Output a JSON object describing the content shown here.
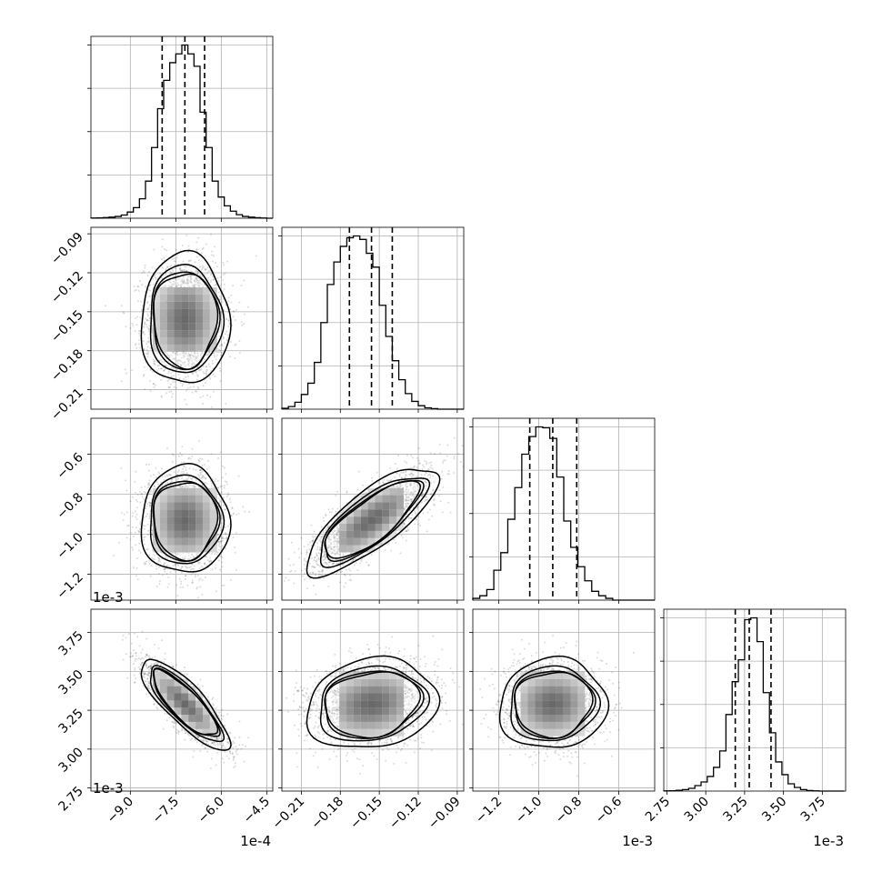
{
  "chart_data": {
    "type": "corner",
    "parameters": [
      {
        "key": "p1",
        "axis_range": [
          -10.3,
          -4.3
        ],
        "offset_label": "1e-4",
        "ticks": [
          -9.0,
          -7.5,
          -6.0,
          -4.5
        ],
        "tick_labels": [
          "−9.0",
          "−7.5",
          "−6.0",
          "−4.5"
        ],
        "quantiles": [
          -7.95,
          -7.2,
          -6.55
        ]
      },
      {
        "key": "p2",
        "axis_range": [
          -0.225,
          -0.085
        ],
        "offset_label": "",
        "ticks": [
          -0.21,
          -0.18,
          -0.15,
          -0.12,
          -0.09
        ],
        "tick_labels": [
          "−0.21",
          "−0.18",
          "−0.15",
          "−0.12",
          "−0.09"
        ],
        "quantiles": [
          -0.173,
          -0.156,
          -0.14
        ]
      },
      {
        "key": "p3",
        "axis_range": [
          -1.33,
          -0.42
        ],
        "offset_label": "1e-3",
        "ticks": [
          -1.2,
          -1.0,
          -0.8,
          -0.6
        ],
        "tick_labels": [
          "−1.2",
          "−1.0",
          "−0.8",
          "−0.6"
        ],
        "quantiles": [
          -1.045,
          -0.93,
          -0.81
        ]
      },
      {
        "key": "p4",
        "axis_range": [
          2.73,
          3.9
        ],
        "offset_label": "1e-3",
        "ticks": [
          2.75,
          3.0,
          3.25,
          3.5,
          3.75
        ],
        "tick_labels": [
          "2.75",
          "3.00",
          "3.25",
          "3.50",
          "3.75"
        ],
        "quantiles": [
          3.19,
          3.28,
          3.42
        ]
      }
    ],
    "histograms": [
      {
        "param": "p1",
        "bin_edges": [
          -10.3,
          -10.1,
          -9.9,
          -9.7,
          -9.5,
          -9.3,
          -9.1,
          -8.9,
          -8.7,
          -8.5,
          -8.3,
          -8.1,
          -7.9,
          -7.7,
          -7.5,
          -7.3,
          -7.1,
          -6.9,
          -6.7,
          -6.5,
          -6.3,
          -6.1,
          -5.9,
          -5.7,
          -5.5,
          -5.3,
          -5.1,
          -4.9,
          -4.7,
          -4.5,
          -4.3
        ],
        "counts": [
          1,
          2,
          4,
          6,
          10,
          18,
          35,
          60,
          110,
          210,
          400,
          620,
          780,
          880,
          930,
          980,
          930,
          860,
          600,
          400,
          210,
          120,
          70,
          40,
          20,
          10,
          6,
          3,
          1,
          0
        ]
      },
      {
        "param": "p2",
        "bin_edges": [
          -0.225,
          -0.22,
          -0.215,
          -0.21,
          -0.205,
          -0.2,
          -0.195,
          -0.19,
          -0.185,
          -0.18,
          -0.175,
          -0.17,
          -0.165,
          -0.16,
          -0.155,
          -0.15,
          -0.145,
          -0.14,
          -0.135,
          -0.13,
          -0.125,
          -0.12,
          -0.115,
          -0.11,
          -0.105,
          -0.1,
          -0.095,
          -0.09,
          -0.085
        ],
        "counts": [
          5,
          15,
          40,
          85,
          150,
          270,
          500,
          720,
          850,
          940,
          990,
          1000,
          980,
          900,
          820,
          600,
          420,
          280,
          170,
          90,
          45,
          20,
          8,
          3,
          0,
          0,
          0,
          0
        ]
      },
      {
        "param": "p3",
        "bin_edges": [
          -1.33,
          -1.295,
          -1.26,
          -1.225,
          -1.19,
          -1.155,
          -1.12,
          -1.085,
          -1.05,
          -1.015,
          -0.98,
          -0.945,
          -0.91,
          -0.875,
          -0.84,
          -0.805,
          -0.77,
          -0.735,
          -0.7,
          -0.665,
          -0.63,
          -0.595,
          -0.56,
          -0.525,
          -0.49,
          -0.455,
          -0.42
        ],
        "counts": [
          10,
          25,
          60,
          170,
          270,
          460,
          640,
          830,
          930,
          985,
          980,
          920,
          700,
          450,
          300,
          190,
          110,
          50,
          25,
          10,
          0,
          0,
          0,
          0,
          0,
          0
        ]
      },
      {
        "param": "p4",
        "bin_edges": [
          2.73,
          2.77,
          2.81,
          2.85,
          2.89,
          2.93,
          2.97,
          3.01,
          3.05,
          3.09,
          3.13,
          3.17,
          3.21,
          3.25,
          3.29,
          3.33,
          3.37,
          3.41,
          3.45,
          3.49,
          3.53,
          3.57,
          3.61,
          3.65,
          3.69,
          3.73,
          3.77,
          3.81,
          3.85,
          3.89
        ],
        "counts": [
          1,
          2,
          4,
          8,
          15,
          30,
          50,
          80,
          130,
          220,
          420,
          600,
          720,
          940,
          950,
          820,
          540,
          320,
          160,
          90,
          40,
          20,
          8,
          3,
          1,
          0,
          0,
          0,
          0
        ]
      }
    ],
    "joint": [
      {
        "x": "p1",
        "y": "p2",
        "mean": [
          -7.2,
          -0.156
        ],
        "sd": [
          0.65,
          0.0225
        ],
        "corr": 0.0
      },
      {
        "x": "p1",
        "y": "p3",
        "mean": [
          -7.2,
          -0.93
        ],
        "sd": [
          0.65,
          0.12
        ],
        "corr": 0.0
      },
      {
        "x": "p2",
        "y": "p3",
        "mean": [
          -0.156,
          -0.93
        ],
        "sd": [
          0.0225,
          0.12
        ],
        "corr": 0.78
      },
      {
        "x": "p1",
        "y": "p4",
        "mean": [
          -7.2,
          3.29
        ],
        "sd": [
          0.65,
          0.13
        ],
        "corr": -0.82
      },
      {
        "x": "p2",
        "y": "p4",
        "mean": [
          -0.156,
          3.29
        ],
        "sd": [
          0.0225,
          0.13
        ],
        "corr": 0.15
      },
      {
        "x": "p3",
        "y": "p4",
        "mean": [
          -0.93,
          3.29
        ],
        "sd": [
          0.12,
          0.13
        ],
        "corr": 0.05
      }
    ],
    "contour_levels_sigma": [
      0.5,
      1.0,
      1.5,
      2.0
    ],
    "grid": true,
    "histogram_step_color": "#000000",
    "quantile_line_style": "dashed"
  }
}
